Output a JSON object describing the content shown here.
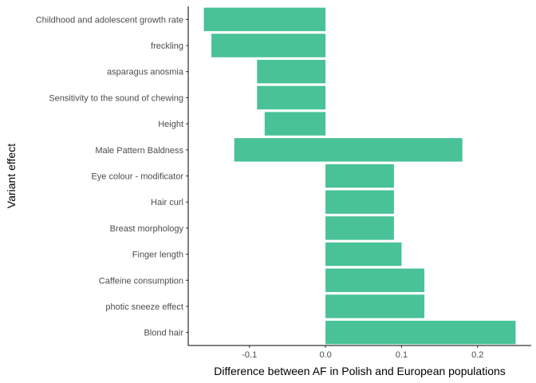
{
  "chart_data": {
    "type": "bar",
    "orientation": "horizontal",
    "categories": [
      "Childhood and adolescent growth rate",
      "freckling",
      "asparagus anosmia",
      "Sensitivity to the sound of chewing",
      "Height",
      "Male Pattern Baldness",
      "Eye colour - modificator",
      "Hair curl",
      "Breast morphology",
      "Finger length",
      "Caffeine consumption",
      "photic sneeze effect",
      "Blond hair"
    ],
    "bars": [
      {
        "start": -0.16,
        "end": 0
      },
      {
        "start": -0.15,
        "end": 0
      },
      {
        "start": -0.09,
        "end": 0
      },
      {
        "start": -0.09,
        "end": 0
      },
      {
        "start": -0.08,
        "end": 0
      },
      {
        "start": -0.12,
        "end": 0.18
      },
      {
        "start": 0,
        "end": 0.09
      },
      {
        "start": 0,
        "end": 0.09
      },
      {
        "start": 0,
        "end": 0.09
      },
      {
        "start": 0,
        "end": 0.1
      },
      {
        "start": 0,
        "end": 0.13
      },
      {
        "start": 0,
        "end": 0.13
      },
      {
        "start": 0,
        "end": 0.25
      }
    ],
    "xticks": [
      -0.1,
      0.0,
      0.1,
      0.2
    ],
    "xtick_labels": [
      "-0.1",
      "0.0",
      "0.1",
      "0.2"
    ],
    "xlim": [
      -0.1805,
      0.2705
    ],
    "xlabel": "Difference between AF in Polish and European populations",
    "ylabel": "Variant effect",
    "bar_color": "#48c296",
    "grid": false,
    "legend": "none"
  }
}
